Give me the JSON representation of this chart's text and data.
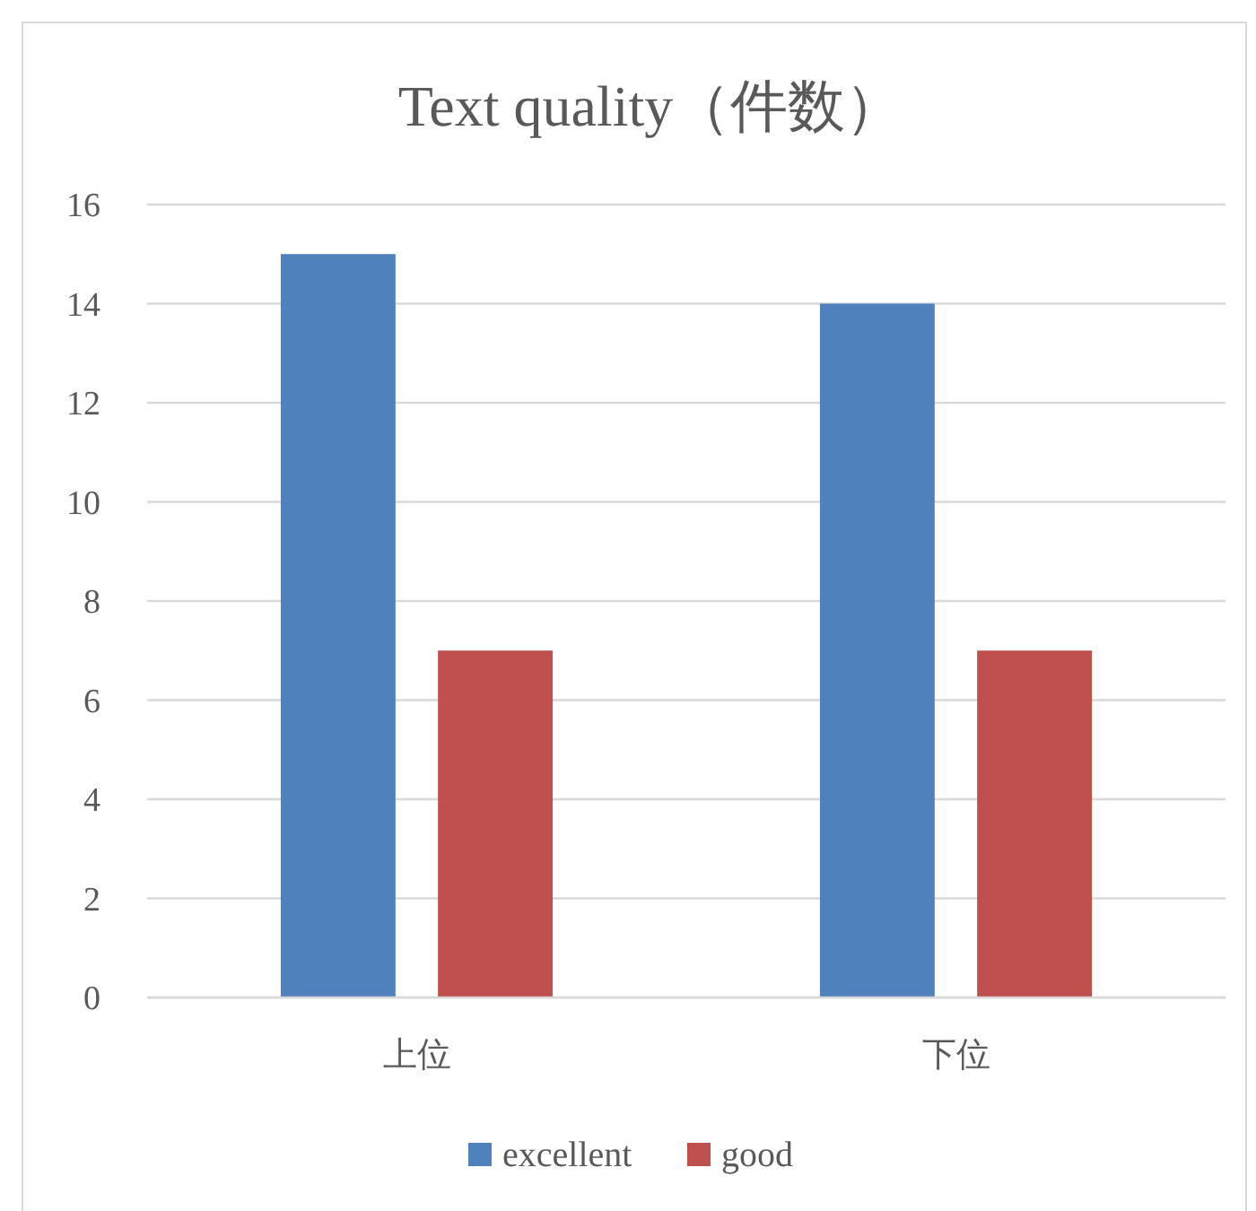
{
  "chart_data": {
    "type": "bar",
    "title": "Text quality（件数）",
    "categories": [
      "上位",
      "下位"
    ],
    "series": [
      {
        "name": "excellent",
        "color": "#4f81bd",
        "values": [
          15,
          14
        ]
      },
      {
        "name": "good",
        "color": "#c0504d",
        "values": [
          7,
          7
        ]
      }
    ],
    "ylim": [
      0,
      16
    ],
    "yticks": [
      0,
      2,
      4,
      6,
      8,
      10,
      12,
      14,
      16
    ],
    "grid": "y",
    "legend": "bottom"
  }
}
